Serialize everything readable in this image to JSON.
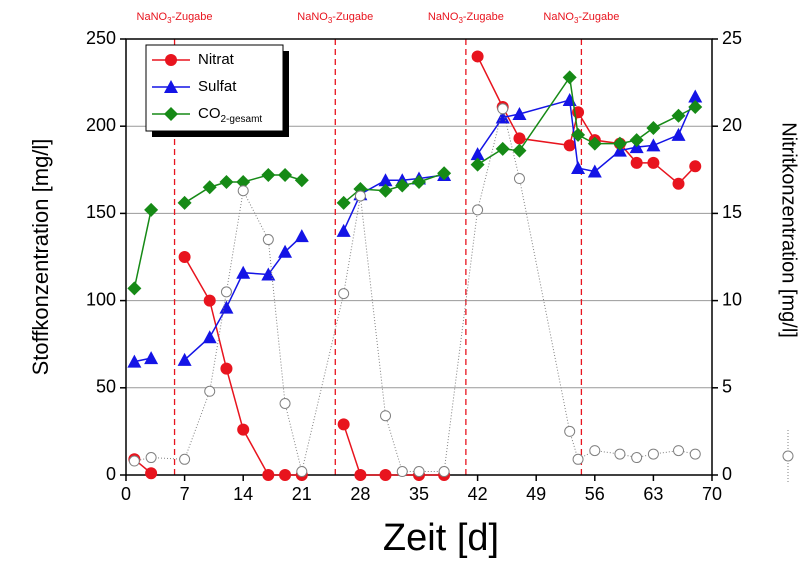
{
  "chart_data": {
    "type": "line",
    "x_label": "Zeit [d]",
    "y_label": "Stoffkonzentration [mg/l]",
    "y2_label": "Nitritkonzentration [mg/l]",
    "xlim": [
      0,
      70
    ],
    "xticks": [
      0,
      7,
      14,
      21,
      28,
      35,
      42,
      49,
      56,
      63,
      70
    ],
    "ylim": [
      0,
      250
    ],
    "yticks": [
      0,
      50,
      100,
      150,
      200,
      250
    ],
    "y2lim": [
      0,
      25
    ],
    "y2ticks": [
      0,
      5,
      10,
      15,
      20,
      25
    ],
    "grid": true,
    "legend": "upper left",
    "annotations": [
      {
        "x": 5.8,
        "label": [
          "NaNO",
          "3",
          "-Zugabe"
        ]
      },
      {
        "x": 25,
        "label": [
          "NaNO",
          "3",
          "-Zugabe"
        ]
      },
      {
        "x": 40.6,
        "label": [
          "NaNO",
          "3",
          "-Zugabe"
        ]
      },
      {
        "x": 54.4,
        "label": [
          "NaNO",
          "3",
          "-Zugabe"
        ]
      }
    ],
    "series": [
      {
        "name": [
          "Nitrat"
        ],
        "color": "#e8141e",
        "marker": "circle",
        "x": [
          1,
          3,
          null,
          7,
          10,
          12,
          14,
          17,
          19,
          21,
          null,
          26,
          28,
          31,
          35,
          38,
          null,
          42,
          45,
          47,
          53,
          54,
          56,
          59,
          61,
          63,
          66,
          68
        ],
        "values": [
          9,
          1,
          null,
          125,
          100,
          61,
          26,
          0,
          0,
          0,
          null,
          29,
          0,
          0,
          0,
          0,
          null,
          240,
          211,
          193,
          189,
          208,
          192,
          190,
          179,
          179,
          167,
          177
        ]
      },
      {
        "name": [
          "Sulfat"
        ],
        "color": "#1414e6",
        "marker": "triangle",
        "x": [
          1,
          3,
          null,
          7,
          10,
          12,
          14,
          17,
          19,
          21,
          null,
          26,
          28,
          31,
          33,
          35,
          38,
          null,
          42,
          45,
          47,
          53,
          54,
          56,
          59,
          61,
          63,
          66,
          68
        ],
        "values": [
          65,
          67,
          null,
          66,
          79,
          96,
          116,
          115,
          128,
          137,
          null,
          140,
          161,
          169,
          169,
          170,
          172,
          null,
          184,
          205,
          207,
          215,
          176,
          174,
          186,
          188,
          189,
          195,
          217
        ]
      },
      {
        "name": [
          "CO",
          "2-gesamt"
        ],
        "color": "#168a16",
        "marker": "diamond",
        "x": [
          1,
          3,
          null,
          7,
          10,
          12,
          14,
          17,
          19,
          21,
          null,
          26,
          28,
          31,
          33,
          35,
          38,
          null,
          42,
          45,
          47,
          53,
          54,
          56,
          59,
          61,
          63,
          66,
          68
        ],
        "values": [
          107,
          152,
          null,
          156,
          165,
          168,
          168,
          172,
          172,
          169,
          null,
          156,
          164,
          163,
          166,
          168,
          173,
          null,
          178,
          187,
          186,
          228,
          195,
          190,
          190,
          192,
          199,
          206,
          211
        ]
      },
      {
        "name": null,
        "color": "#808080",
        "marker": "open-circle",
        "axis": "y2",
        "x": [
          1,
          3,
          7,
          10,
          12,
          14,
          17,
          19,
          21,
          26,
          28,
          31,
          33,
          35,
          38,
          42,
          45,
          47,
          53,
          54,
          56,
          59,
          61,
          63,
          66,
          68
        ],
        "values": [
          0.8,
          1.0,
          0.9,
          4.8,
          10.5,
          16.3,
          13.5,
          4.1,
          0.2,
          10.4,
          16.0,
          3.4,
          0.2,
          0.2,
          0.2,
          15.2,
          21,
          17,
          2.5,
          0.9,
          1.4,
          1.2,
          1.0,
          1.2,
          1.4,
          1.2
        ]
      }
    ]
  }
}
